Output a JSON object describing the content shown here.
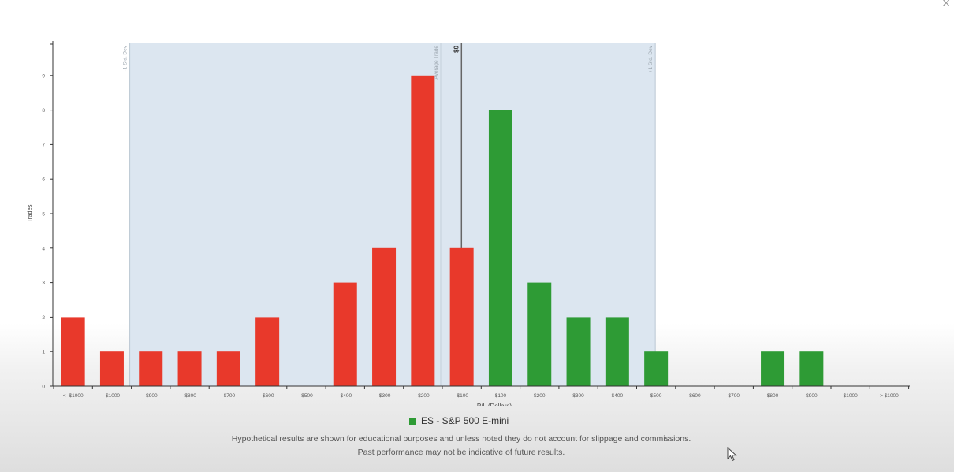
{
  "chart_data": {
    "type": "bar",
    "title": "",
    "xlabel": "P/L (Dollars)",
    "ylabel": "Trades",
    "ylim": [
      0,
      10
    ],
    "yticks": [
      0,
      1,
      2,
      3,
      4,
      5,
      6,
      7,
      8,
      9
    ],
    "categories": [
      "< -$1000",
      "-$1000",
      "-$900",
      "-$800",
      "-$700",
      "-$600",
      "-$500",
      "-$400",
      "-$300",
      "-$200",
      "-$100",
      "$100",
      "$200",
      "$300",
      "$400",
      "$500",
      "$600",
      "$700",
      "$800",
      "$900",
      "$1000",
      "> $1000"
    ],
    "values": [
      2,
      1,
      1,
      1,
      1,
      2,
      0,
      3,
      4,
      9,
      4,
      8,
      3,
      2,
      2,
      1,
      0,
      0,
      1,
      1,
      0,
      0
    ],
    "colors": {
      "loss": "#e8392b",
      "profit": "#2e9b35",
      "band": "#dce6f0"
    },
    "series_name": "ES - S&P 500 E-mini",
    "annotations": {
      "minus_std": "-1 Std. Dev",
      "average": "Average Trade",
      "zero": "$0",
      "plus_std": "+1 Std. Dev"
    },
    "std_band": {
      "from_category_index": 1.5,
      "to_category_index": 15
    },
    "average_at_category_index": 9.5,
    "zero_at_category_index": 10.5,
    "grid": false,
    "legend_position": "bottom"
  },
  "disclaimer": {
    "line1": "Hypothetical results are shown for educational purposes and unless noted they do not account for slippage and commissions.",
    "line2": "Past performance may not be indicative of future results."
  },
  "close_label": "×"
}
